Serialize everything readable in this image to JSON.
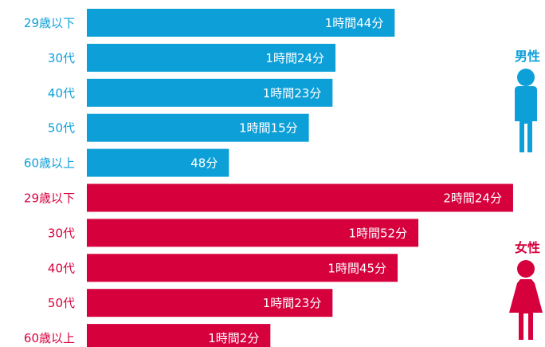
{
  "colors": {
    "male": "#0d9fd8",
    "female": "#d6003d"
  },
  "icons": {
    "male": "male-person-icon",
    "female": "female-person-icon"
  },
  "chart_data": {
    "type": "bar",
    "orientation": "horizontal",
    "unit": "minutes",
    "xlim": [
      0,
      150
    ],
    "grid": false,
    "groups": [
      {
        "name": "男性",
        "color": "#0d9fd8",
        "categories": [
          "29歳以下",
          "30代",
          "40代",
          "50代",
          "60歳以上"
        ],
        "values": [
          104,
          84,
          83,
          75,
          48
        ],
        "labels": [
          "1時間44分",
          "1時間24分",
          "1時間23分",
          "1時間15分",
          "48分"
        ]
      },
      {
        "name": "女性",
        "color": "#d6003d",
        "categories": [
          "29歳以下",
          "30代",
          "40代",
          "50代",
          "60歳以上"
        ],
        "values": [
          144,
          112,
          105,
          83,
          62
        ],
        "labels": [
          "2時間24分",
          "1時間52分",
          "1時間45分",
          "1時間23分",
          "1時間2分"
        ]
      }
    ]
  }
}
